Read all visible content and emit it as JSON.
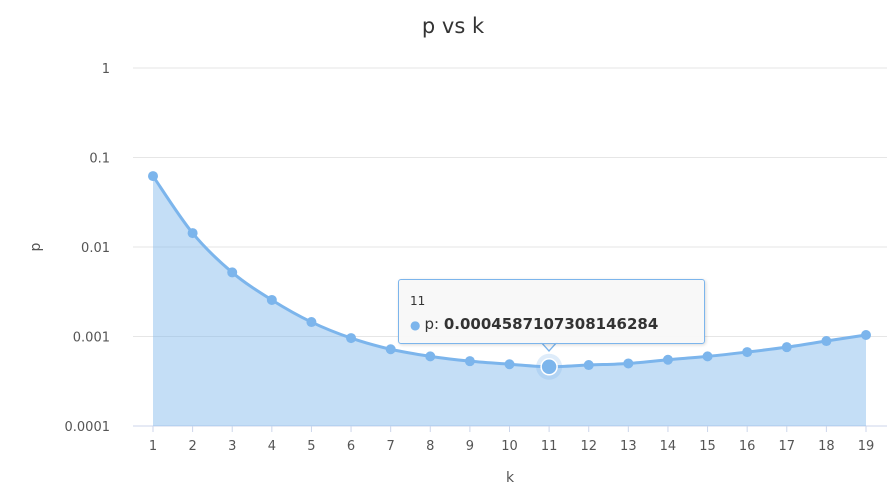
{
  "chart_data": {
    "type": "area",
    "title": "p vs k",
    "xlabel": "k",
    "ylabel": "p",
    "yscale": "log",
    "ylim": [
      0.0001,
      1
    ],
    "yticks": [
      "0.0001",
      "0.001",
      "0.01",
      "0.1",
      "1"
    ],
    "x": [
      1,
      2,
      3,
      4,
      5,
      6,
      7,
      8,
      9,
      10,
      11,
      12,
      13,
      14,
      15,
      16,
      17,
      18,
      19
    ],
    "series": [
      {
        "name": "p",
        "values": [
          0.062,
          0.0143,
          0.0052,
          0.00256,
          0.00145,
          0.00096,
          0.00072,
          0.0006,
          0.00053,
          0.00049,
          0.0004587107308146284,
          0.00048,
          0.0005,
          0.00055,
          0.0006,
          0.00067,
          0.00076,
          0.00089,
          0.00104
        ]
      }
    ],
    "grid": true,
    "color": "#7cb5ec",
    "tooltip": {
      "header": "11",
      "series": "p",
      "value": "0.0004587107308146284",
      "hovered_index": 10
    }
  }
}
